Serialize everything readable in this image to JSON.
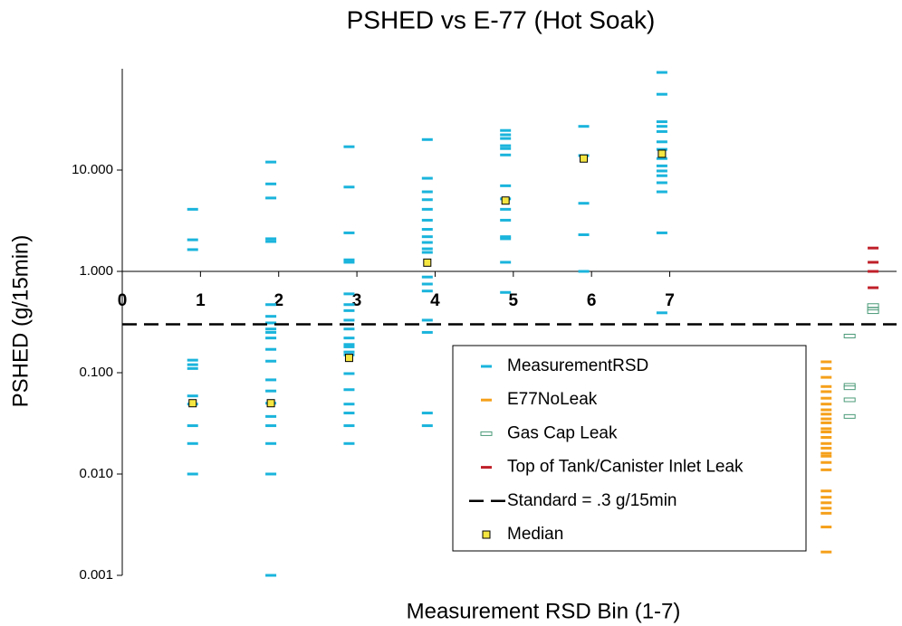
{
  "chart_data": {
    "type": "scatter",
    "title": "PSHED vs E-77 (Hot Soak)",
    "x_label": "Measurement RSD Bin (1-7)",
    "y_label": "PSHED (g/15min)",
    "log_y": true,
    "xlim": [
      0,
      9.9
    ],
    "ylim": [
      0.001,
      100
    ],
    "xticks": [
      0,
      1,
      2,
      3,
      4,
      5,
      6,
      7
    ],
    "yticks": [
      {
        "value": 0.001,
        "label": "0.001"
      },
      {
        "value": 0.01,
        "label": "0.010"
      },
      {
        "value": 0.1,
        "label": "0.100"
      },
      {
        "value": 1,
        "label": "1.000"
      },
      {
        "value": 10,
        "label": "10.000"
      }
    ],
    "x_axis_crosses_at": 1,
    "series": [
      {
        "name": "MeasurementRSD",
        "color": "#1ab4dc",
        "marker": "dash",
        "x": [
          0.9,
          0.9,
          0.9,
          0.9,
          0.9,
          0.9,
          0.9,
          0.9,
          0.9,
          0.9,
          0.9,
          1.9,
          1.9,
          1.9,
          1.9,
          1.9,
          1.9,
          1.9,
          1.9,
          1.9,
          1.9,
          1.9,
          1.9,
          1.9,
          1.9,
          1.9,
          1.9,
          1.9,
          1.9,
          1.9,
          1.9,
          1.9,
          2.9,
          2.9,
          2.9,
          2.9,
          2.9,
          2.9,
          2.9,
          2.9,
          2.9,
          2.9,
          2.9,
          2.9,
          2.9,
          2.9,
          2.9,
          2.9,
          2.9,
          2.9,
          2.9,
          2.9,
          2.9,
          3.9,
          3.9,
          3.9,
          3.9,
          3.9,
          3.9,
          3.9,
          3.9,
          3.9,
          3.9,
          3.9,
          3.9,
          3.9,
          3.9,
          3.9,
          3.9,
          3.9,
          3.9,
          4.9,
          4.9,
          4.9,
          4.9,
          4.9,
          4.9,
          4.9,
          4.9,
          4.9,
          4.9,
          4.9,
          4.9,
          4.9,
          4.9,
          5.9,
          5.9,
          5.9,
          5.9,
          5.9,
          6.9,
          6.9,
          6.9,
          6.9,
          6.9,
          6.9,
          6.9,
          6.9,
          6.9,
          6.9,
          6.9,
          6.9,
          6.9,
          6.9,
          6.9
        ],
        "values": [
          4.1,
          2.05,
          1.64,
          0.133,
          0.12,
          0.11,
          0.059,
          0.049,
          0.03,
          0.02,
          0.01,
          12,
          7.3,
          5.3,
          2.1,
          1.97,
          0.47,
          0.36,
          0.31,
          0.27,
          0.25,
          0.22,
          0.17,
          0.13,
          0.085,
          0.066,
          0.05,
          0.037,
          0.03,
          0.02,
          0.01,
          0.001,
          17,
          6.8,
          2.4,
          1.3,
          1.23,
          0.6,
          0.47,
          0.41,
          0.33,
          0.27,
          0.22,
          0.19,
          0.18,
          0.16,
          0.15,
          0.098,
          0.068,
          0.049,
          0.04,
          0.03,
          0.02,
          20,
          8.3,
          6.1,
          5.1,
          4.1,
          3.2,
          2.6,
          2.2,
          1.93,
          1.67,
          1.54,
          0.88,
          0.75,
          0.64,
          0.33,
          0.25,
          0.04,
          0.03,
          24.6,
          22.3,
          20.5,
          17.4,
          16.3,
          14.1,
          7,
          5.2,
          4.1,
          3.2,
          2.2,
          2.1,
          1.23,
          0.62,
          27,
          13.9,
          4.7,
          2.3,
          1,
          92,
          56,
          30,
          27,
          24,
          19,
          16,
          13,
          11,
          9.8,
          8.8,
          7.5,
          6.1,
          2.4,
          0.39
        ]
      },
      {
        "name": "E77NoLeak",
        "color": "#f5a01a",
        "marker": "dash",
        "x": [
          9,
          9,
          9,
          9,
          9,
          9,
          9,
          9,
          9,
          9,
          9,
          9,
          9,
          9,
          9,
          9,
          9,
          9,
          9,
          9,
          9,
          9,
          9,
          9,
          9,
          9,
          9
        ],
        "values": [
          0.128,
          0.11,
          0.09,
          0.073,
          0.065,
          0.056,
          0.049,
          0.043,
          0.039,
          0.035,
          0.032,
          0.028,
          0.026,
          0.023,
          0.02,
          0.018,
          0.016,
          0.015,
          0.013,
          0.011,
          0.0068,
          0.0059,
          0.0052,
          0.0046,
          0.0041,
          0.003,
          0.0017
        ]
      },
      {
        "name": "Gas Cap Leak",
        "color": "#4a9a78",
        "marker": "open-dash",
        "x": [
          9.3,
          9.3,
          9.3,
          9.3,
          9.3,
          9.6,
          9.6,
          9.6
        ],
        "values": [
          0.23,
          0.075,
          0.071,
          0.054,
          0.037,
          0.46,
          0.42,
          0.4
        ]
      },
      {
        "name": "Top of Tank/Canister Inlet Leak",
        "color": "#c0202a",
        "marker": "dash",
        "x": [
          9.6,
          9.6,
          9.6,
          9.6
        ],
        "values": [
          1.7,
          1.23,
          1,
          0.69
        ]
      },
      {
        "name": "Standard = .3 g/15min",
        "color": "#000000",
        "marker": "hline",
        "values": [
          0.3
        ]
      },
      {
        "name": "Median",
        "color": "#f5e642",
        "marker": "square",
        "x": [
          0.9,
          1.9,
          2.9,
          3.9,
          4.9,
          5.9,
          6.9
        ],
        "values": [
          0.05,
          0.05,
          0.14,
          1.22,
          5,
          13,
          14.5
        ]
      }
    ]
  }
}
